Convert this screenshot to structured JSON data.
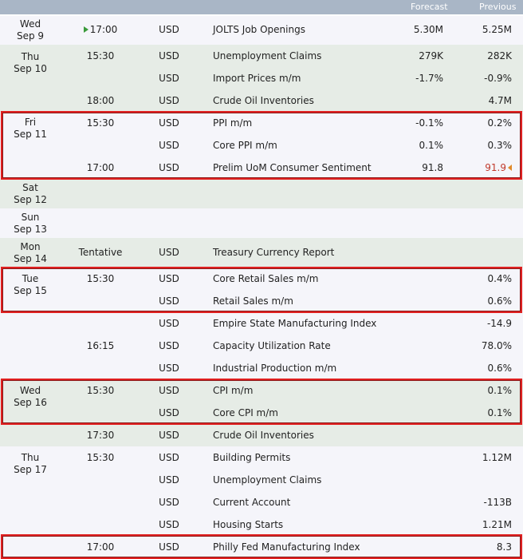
{
  "header": {
    "forecast": "Forecast",
    "previous": "Previous"
  },
  "days": [
    {
      "day": "Wed",
      "date": "Sep 9"
    },
    {
      "day": "Thu",
      "date": "Sep 10"
    },
    {
      "day": "Fri",
      "date": "Sep 11"
    },
    {
      "day": "Sat",
      "date": "Sep 12"
    },
    {
      "day": "Sun",
      "date": "Sep 13"
    },
    {
      "day": "Mon",
      "date": "Sep 14"
    },
    {
      "day": "Tue",
      "date": "Sep 15"
    },
    {
      "day": "Wed",
      "date": "Sep 16"
    },
    {
      "day": "Thu",
      "date": "Sep 17"
    }
  ],
  "rows": [
    {
      "time": "17:00",
      "currency": "USD",
      "event": "JOLTS Job Openings",
      "forecast": "5.30M",
      "previous": "5.25M"
    },
    {
      "time": "15:30",
      "currency": "USD",
      "event": "Unemployment Claims",
      "forecast": "279K",
      "previous": "282K"
    },
    {
      "time": "",
      "currency": "USD",
      "event": "Import Prices m/m",
      "forecast": "-1.7%",
      "previous": "-0.9%"
    },
    {
      "time": "18:00",
      "currency": "USD",
      "event": "Crude Oil Inventories",
      "forecast": "",
      "previous": "4.7M"
    },
    {
      "time": "15:30",
      "currency": "USD",
      "event": "PPI m/m",
      "forecast": "-0.1%",
      "previous": "0.2%"
    },
    {
      "time": "",
      "currency": "USD",
      "event": "Core PPI m/m",
      "forecast": "0.1%",
      "previous": "0.3%"
    },
    {
      "time": "17:00",
      "currency": "USD",
      "event": "Prelim UoM Consumer Sentiment",
      "forecast": "91.8",
      "previous": "91.9"
    },
    {
      "time": "Tentative",
      "currency": "USD",
      "event": "Treasury Currency Report",
      "forecast": "",
      "previous": ""
    },
    {
      "time": "15:30",
      "currency": "USD",
      "event": "Core Retail Sales m/m",
      "forecast": "",
      "previous": "0.4%"
    },
    {
      "time": "",
      "currency": "USD",
      "event": "Retail Sales m/m",
      "forecast": "",
      "previous": "0.6%"
    },
    {
      "time": "",
      "currency": "USD",
      "event": "Empire State Manufacturing Index",
      "forecast": "",
      "previous": "-14.9"
    },
    {
      "time": "16:15",
      "currency": "USD",
      "event": "Capacity Utilization Rate",
      "forecast": "",
      "previous": "78.0%"
    },
    {
      "time": "",
      "currency": "USD",
      "event": "Industrial Production m/m",
      "forecast": "",
      "previous": "0.6%"
    },
    {
      "time": "15:30",
      "currency": "USD",
      "event": "CPI m/m",
      "forecast": "",
      "previous": "0.1%"
    },
    {
      "time": "",
      "currency": "USD",
      "event": "Core CPI m/m",
      "forecast": "",
      "previous": "0.1%"
    },
    {
      "time": "17:30",
      "currency": "USD",
      "event": "Crude Oil Inventories",
      "forecast": "",
      "previous": ""
    },
    {
      "time": "15:30",
      "currency": "USD",
      "event": "Building Permits",
      "forecast": "",
      "previous": "1.12M"
    },
    {
      "time": "",
      "currency": "USD",
      "event": "Unemployment Claims",
      "forecast": "",
      "previous": ""
    },
    {
      "time": "",
      "currency": "USD",
      "event": "Current Account",
      "forecast": "",
      "previous": "-113B"
    },
    {
      "time": "",
      "currency": "USD",
      "event": "Housing Starts",
      "forecast": "",
      "previous": "1.21M"
    },
    {
      "time": "17:00",
      "currency": "USD",
      "event": "Philly Fed Manufacturing Index",
      "forecast": "",
      "previous": "8.3"
    }
  ],
  "colors": {
    "header": "#a9b6c6",
    "highlight": "#e02020",
    "up_value": "#c0392b"
  }
}
